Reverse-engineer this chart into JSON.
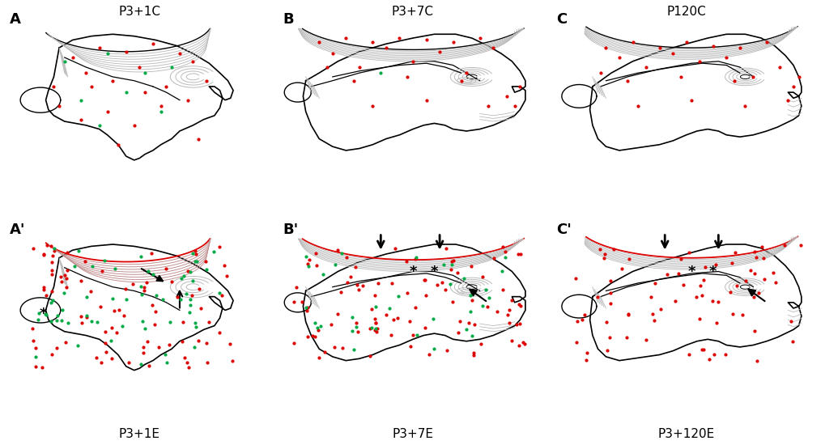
{
  "titles_top": [
    "P3+1C",
    "P3+7C",
    "P120C"
  ],
  "labels_bottom": [
    "P3+1E",
    "P3+7E",
    "P3+120E"
  ],
  "background": "#ffffff",
  "red_color": "#dd0000",
  "green_color": "#00aa44",
  "outline_color": "#000000",
  "gray_color": "#999999",
  "light_gray": "#bbbbbb"
}
